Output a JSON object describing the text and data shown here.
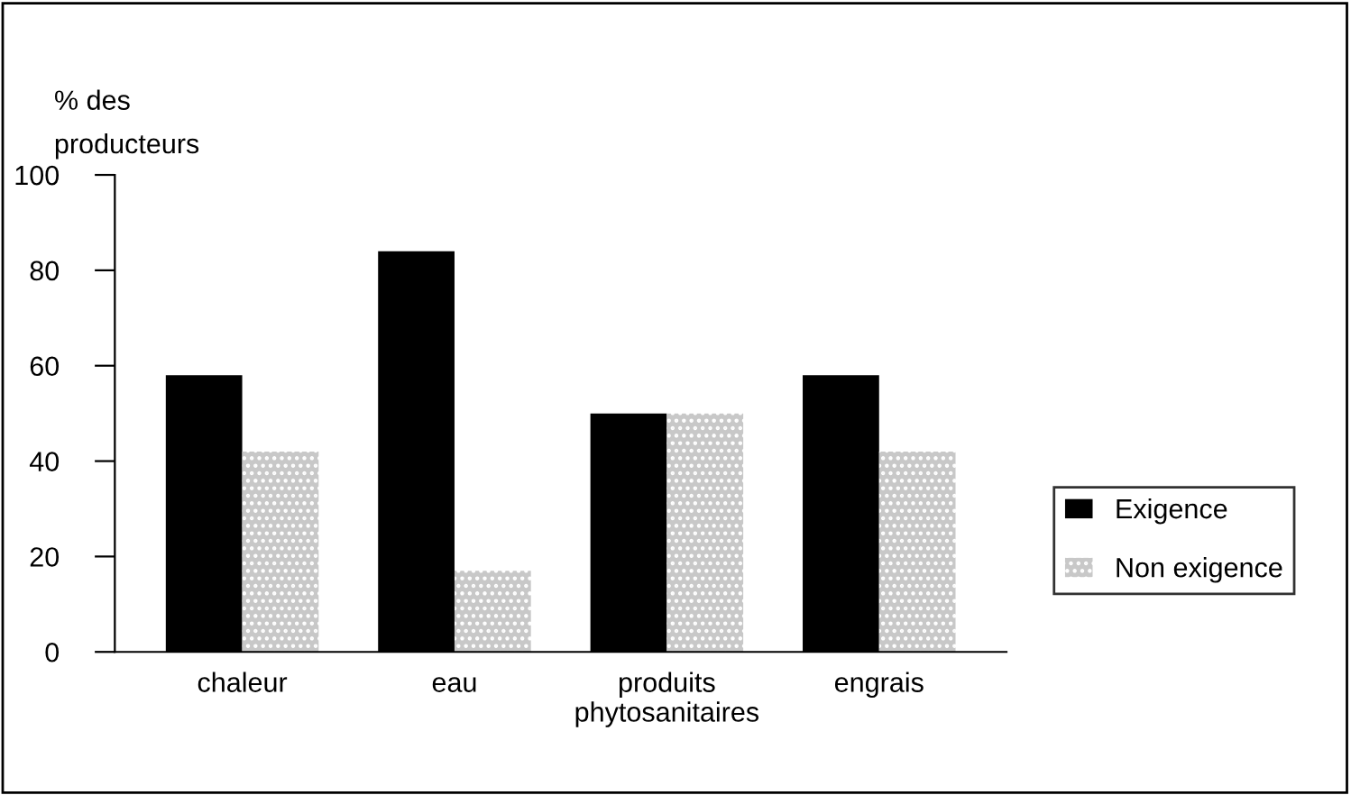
{
  "chart_data": {
    "type": "bar",
    "ylabel": "% des\nproducteurs",
    "categories": [
      "chaleur",
      "eau",
      "produits\nphytosanitaires",
      "engrais"
    ],
    "series": [
      {
        "name": "Exigence",
        "color": "#000000",
        "values": [
          58,
          84,
          50,
          58
        ]
      },
      {
        "name": "Non exigence",
        "color": "#c8c8c8",
        "values": [
          42,
          17,
          50,
          42
        ]
      }
    ],
    "ylim": [
      0,
      100
    ],
    "yticks": [
      0,
      20,
      40,
      60,
      80,
      100
    ],
    "grid": false,
    "legend": "right"
  }
}
